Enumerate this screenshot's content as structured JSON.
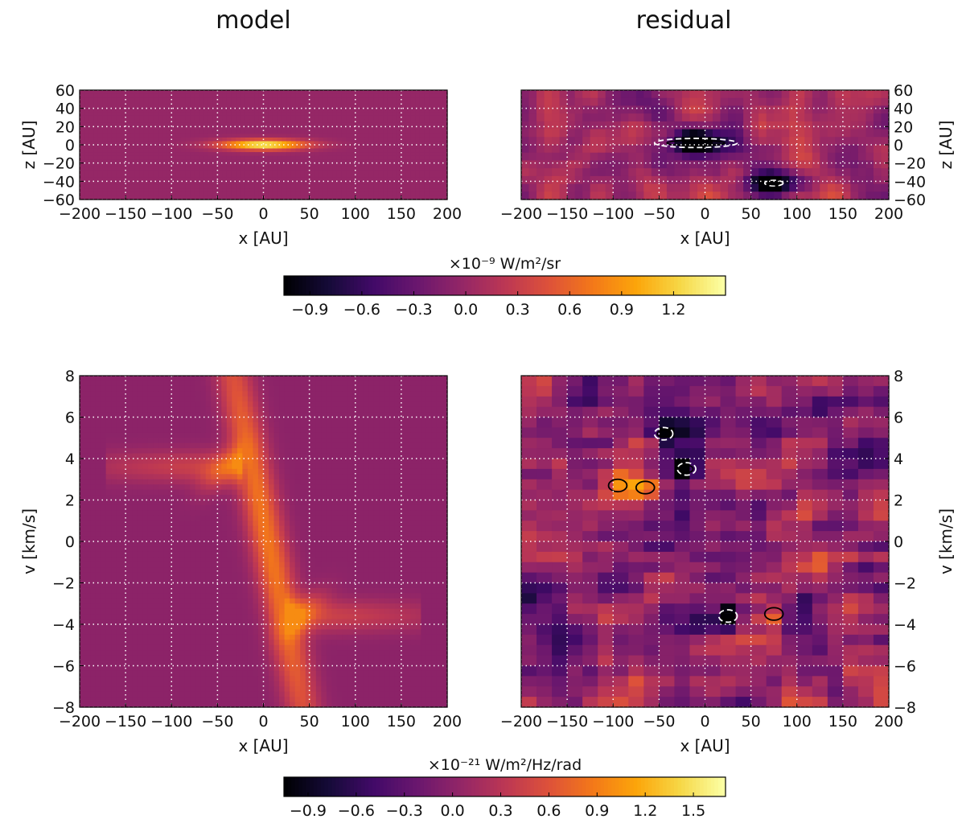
{
  "figure": {
    "column_titles": [
      "model",
      "residual"
    ],
    "colorbars": [
      {
        "label": "×10⁻⁹ W/m²/sr",
        "ticks": [
          "−0.9",
          "−0.6",
          "−0.3",
          "0.0",
          "0.3",
          "0.6",
          "0.9",
          "1.2"
        ],
        "tick_values": [
          -0.9,
          -0.6,
          -0.3,
          0.0,
          0.3,
          0.6,
          0.9,
          1.2
        ],
        "range": [
          -1.05,
          1.5
        ],
        "colormap": "inferno"
      },
      {
        "label": "×10⁻²¹ W/m²/Hz/rad",
        "ticks": [
          "−0.9",
          "−0.6",
          "−0.3",
          "0.0",
          "0.3",
          "0.6",
          "0.9",
          "1.2",
          "1.5"
        ],
        "tick_values": [
          -0.9,
          -0.6,
          -0.3,
          0.0,
          0.3,
          0.6,
          0.9,
          1.2,
          1.5
        ],
        "range": [
          -1.05,
          1.7
        ],
        "colormap": "inferno"
      }
    ]
  },
  "chart_data": [
    {
      "type": "heatmap",
      "panel": "model image",
      "xlabel": "x [AU]",
      "ylabel": "z [AU]",
      "xlim": [
        -200,
        200
      ],
      "ylim": [
        -60,
        60
      ],
      "xticks": [
        "−200",
        "−150",
        "−100",
        "−50",
        "0",
        "50",
        "100",
        "150",
        "200"
      ],
      "yticks": [
        "60",
        "40",
        "20",
        "0",
        "−20",
        "−40",
        "−60"
      ],
      "grid": true,
      "features": [
        {
          "kind": "bright disk",
          "x_range": [
            -60,
            60
          ],
          "z_half_width": 6,
          "peak": 1.4
        },
        {
          "kind": "background",
          "value": 0.0
        }
      ]
    },
    {
      "type": "heatmap",
      "panel": "residual image",
      "xlabel": "x [AU]",
      "ylabel": "z [AU]",
      "xlim": [
        -200,
        200
      ],
      "ylim": [
        -60,
        60
      ],
      "xticks": [
        "−200",
        "−150",
        "−100",
        "−50",
        "0",
        "50",
        "100",
        "150",
        "200"
      ],
      "yticks": [
        "60",
        "40",
        "20",
        "0",
        "−20",
        "−40",
        "−60"
      ],
      "grid": true,
      "features": [
        {
          "kind": "negative residual",
          "x": -10,
          "z": 2,
          "note": "dark elongated region with contours"
        },
        {
          "kind": "negative residual",
          "x": 75,
          "z": -42
        }
      ]
    },
    {
      "type": "heatmap",
      "panel": "model position-velocity diagram",
      "xlabel": "x [AU]",
      "ylabel": "v [km/s]",
      "xlim": [
        -200,
        200
      ],
      "ylim": [
        -8,
        8
      ],
      "xticks": [
        "−200",
        "−150",
        "−100",
        "−50",
        "0",
        "50",
        "100",
        "150",
        "200"
      ],
      "yticks": [
        "8",
        "6",
        "4",
        "2",
        "0",
        "−2",
        "−4",
        "−6",
        "−8"
      ],
      "grid": true,
      "features": [
        {
          "kind": "central ridge",
          "from": [
            -30,
            7.5
          ],
          "to": [
            40,
            -7.5
          ],
          "peak": 1.0
        },
        {
          "kind": "left arm",
          "v": 3.5,
          "x_range": [
            -160,
            -30
          ]
        },
        {
          "kind": "right arm",
          "v": -3.5,
          "x_range": [
            30,
            160
          ]
        }
      ]
    },
    {
      "type": "heatmap",
      "panel": "residual position-velocity diagram",
      "xlabel": "x [AU]",
      "ylabel": "v [km/s]",
      "xlim": [
        -200,
        200
      ],
      "ylim": [
        -8,
        8
      ],
      "xticks": [
        "−200",
        "−150",
        "−100",
        "−50",
        "0",
        "50",
        "100",
        "150",
        "200"
      ],
      "yticks": [
        "8",
        "6",
        "4",
        "2",
        "0",
        "−2",
        "−4",
        "−6",
        "−8"
      ],
      "grid": true,
      "features": [
        {
          "kind": "negative residual",
          "x": -20,
          "v": 3.5
        },
        {
          "kind": "negative residual",
          "x": -45,
          "v": 5.2
        },
        {
          "kind": "negative residual",
          "x": 25,
          "v": -3.6
        },
        {
          "kind": "positive residual",
          "x": 75,
          "v": -3.5
        },
        {
          "kind": "positive residual",
          "x": -95,
          "v": 2.7
        },
        {
          "kind": "positive residual",
          "x": -65,
          "v": 2.6
        }
      ]
    }
  ]
}
